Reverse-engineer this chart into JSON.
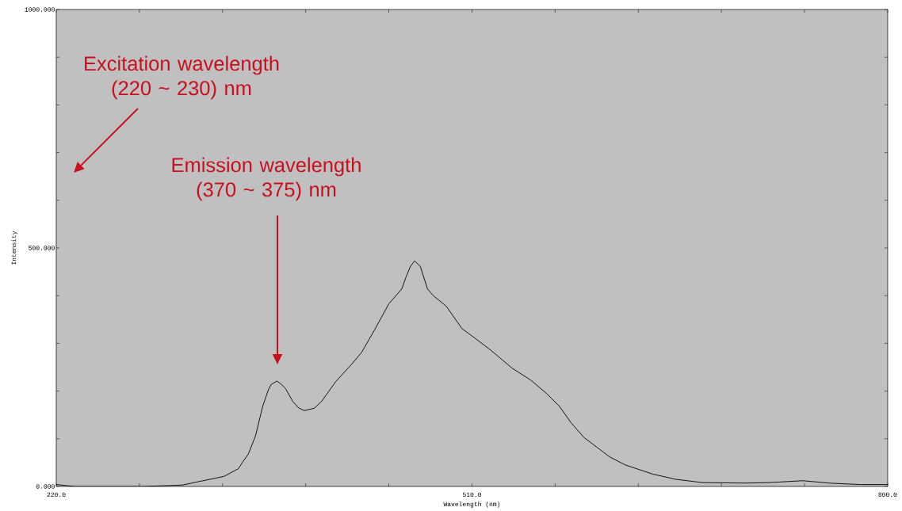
{
  "chart_data": {
    "type": "line",
    "xlabel": "Wavelength (nm)",
    "ylabel": "Intensity",
    "annotations": [
      "Excitation wavelength (220 ~ 230) nm",
      "Emission wavelength (370 ~ 375) nm"
    ],
    "x": [
      220,
      233,
      250,
      280,
      300,
      308,
      324,
      337,
      347,
      350,
      354,
      359,
      364,
      368,
      370,
      374,
      377,
      380,
      385,
      389,
      393,
      400,
      405,
      415,
      426,
      433,
      442,
      452,
      461,
      464,
      467,
      470,
      474,
      479,
      483,
      492,
      503,
      512,
      523,
      538,
      551,
      562,
      571,
      579,
      588,
      606,
      617,
      636,
      652,
      671,
      700,
      717,
      741,
      759,
      781,
      800
    ],
    "series": [
      {
        "color": "#000000",
        "values": [
          4,
          0,
          0,
          0,
          2,
          3,
          13,
          21,
          37,
          51,
          68,
          106,
          168,
          203,
          214,
          221,
          214,
          205,
          178,
          165,
          159,
          164,
          178,
          220,
          256,
          281,
          328,
          383,
          414,
          439,
          461,
          473,
          461,
          414,
          400,
          378,
          331,
          311,
          286,
          248,
          223,
          195,
          168,
          134,
          103,
          62,
          45,
          26,
          15,
          8,
          7,
          8,
          12,
          7,
          4,
          4
        ]
      }
    ],
    "xlim": [
      220,
      800
    ],
    "ylim": [
      0,
      1000
    ],
    "xticks": [
      {
        "value": 220,
        "label": "220.0"
      },
      {
        "value": 278,
        "label": null
      },
      {
        "value": 336,
        "label": null
      },
      {
        "value": 394,
        "label": null
      },
      {
        "value": 452,
        "label": null
      },
      {
        "value": 510,
        "label": "510.0"
      },
      {
        "value": 568,
        "label": null
      },
      {
        "value": 626,
        "label": null
      },
      {
        "value": 684,
        "label": null
      },
      {
        "value": 742,
        "label": null
      },
      {
        "value": 800,
        "label": "800.0"
      }
    ],
    "yticks": [
      {
        "value": 0,
        "label": "0.000"
      },
      {
        "value": 100,
        "label": null
      },
      {
        "value": 200,
        "label": null
      },
      {
        "value": 300,
        "label": null
      },
      {
        "value": 400,
        "label": null
      },
      {
        "value": 500,
        "label": "500.000"
      },
      {
        "value": 600,
        "label": null
      },
      {
        "value": 700,
        "label": null
      },
      {
        "value": 800,
        "label": null
      },
      {
        "value": 900,
        "label": null
      },
      {
        "value": 1000,
        "label": "1000.000"
      }
    ]
  }
}
